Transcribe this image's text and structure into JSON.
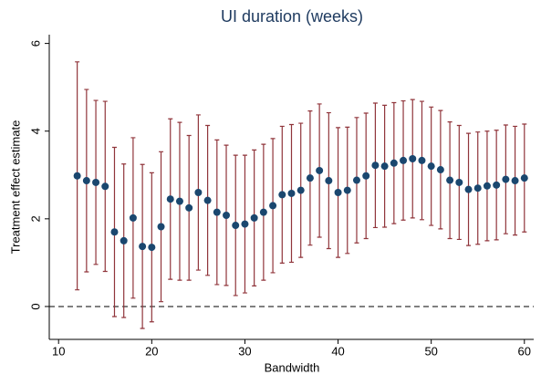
{
  "chart_data": {
    "type": "errorbar",
    "title": "UI duration (weeks)",
    "x_label": "Bandwidth",
    "y_label": "Treatment effect estimate",
    "x": [
      12,
      13,
      14,
      15,
      16,
      17,
      18,
      19,
      20,
      21,
      22,
      23,
      24,
      25,
      26,
      27,
      28,
      29,
      30,
      31,
      32,
      33,
      34,
      35,
      36,
      37,
      38,
      39,
      40,
      41,
      42,
      43,
      44,
      45,
      46,
      47,
      48,
      49,
      50,
      51,
      52,
      53,
      54,
      55,
      56,
      57,
      58,
      59,
      60
    ],
    "values": [
      2.98,
      2.87,
      2.83,
      2.74,
      1.7,
      1.5,
      2.02,
      1.37,
      1.35,
      1.82,
      2.45,
      2.4,
      2.25,
      2.6,
      2.42,
      2.15,
      2.08,
      1.85,
      1.88,
      2.02,
      2.15,
      2.3,
      2.55,
      2.58,
      2.65,
      2.93,
      3.1,
      2.87,
      2.6,
      2.65,
      2.88,
      2.98,
      3.22,
      3.2,
      3.27,
      3.33,
      3.37,
      3.33,
      3.2,
      3.12,
      2.88,
      2.83,
      2.67,
      2.7,
      2.75,
      2.77,
      2.9,
      2.87,
      2.93
    ],
    "errors": [
      2.6,
      2.08,
      1.87,
      1.94,
      1.93,
      1.75,
      1.83,
      1.87,
      1.7,
      1.71,
      1.83,
      1.8,
      1.65,
      1.77,
      1.71,
      1.65,
      1.6,
      1.6,
      1.57,
      1.55,
      1.55,
      1.53,
      1.56,
      1.57,
      1.53,
      1.53,
      1.52,
      1.55,
      1.48,
      1.44,
      1.43,
      1.43,
      1.42,
      1.39,
      1.38,
      1.36,
      1.35,
      1.35,
      1.35,
      1.35,
      1.33,
      1.3,
      1.28,
      1.28,
      1.25,
      1.25,
      1.24,
      1.24,
      1.23
    ],
    "color": "#1a476f",
    "error_color": "#90353b",
    "xlim": [
      9,
      61
    ],
    "ylim": [
      -0.75,
      6.2
    ],
    "xticks": [
      10,
      20,
      30,
      40,
      50,
      60
    ],
    "yticks": [
      0,
      2,
      4,
      6
    ],
    "hline": 0
  }
}
